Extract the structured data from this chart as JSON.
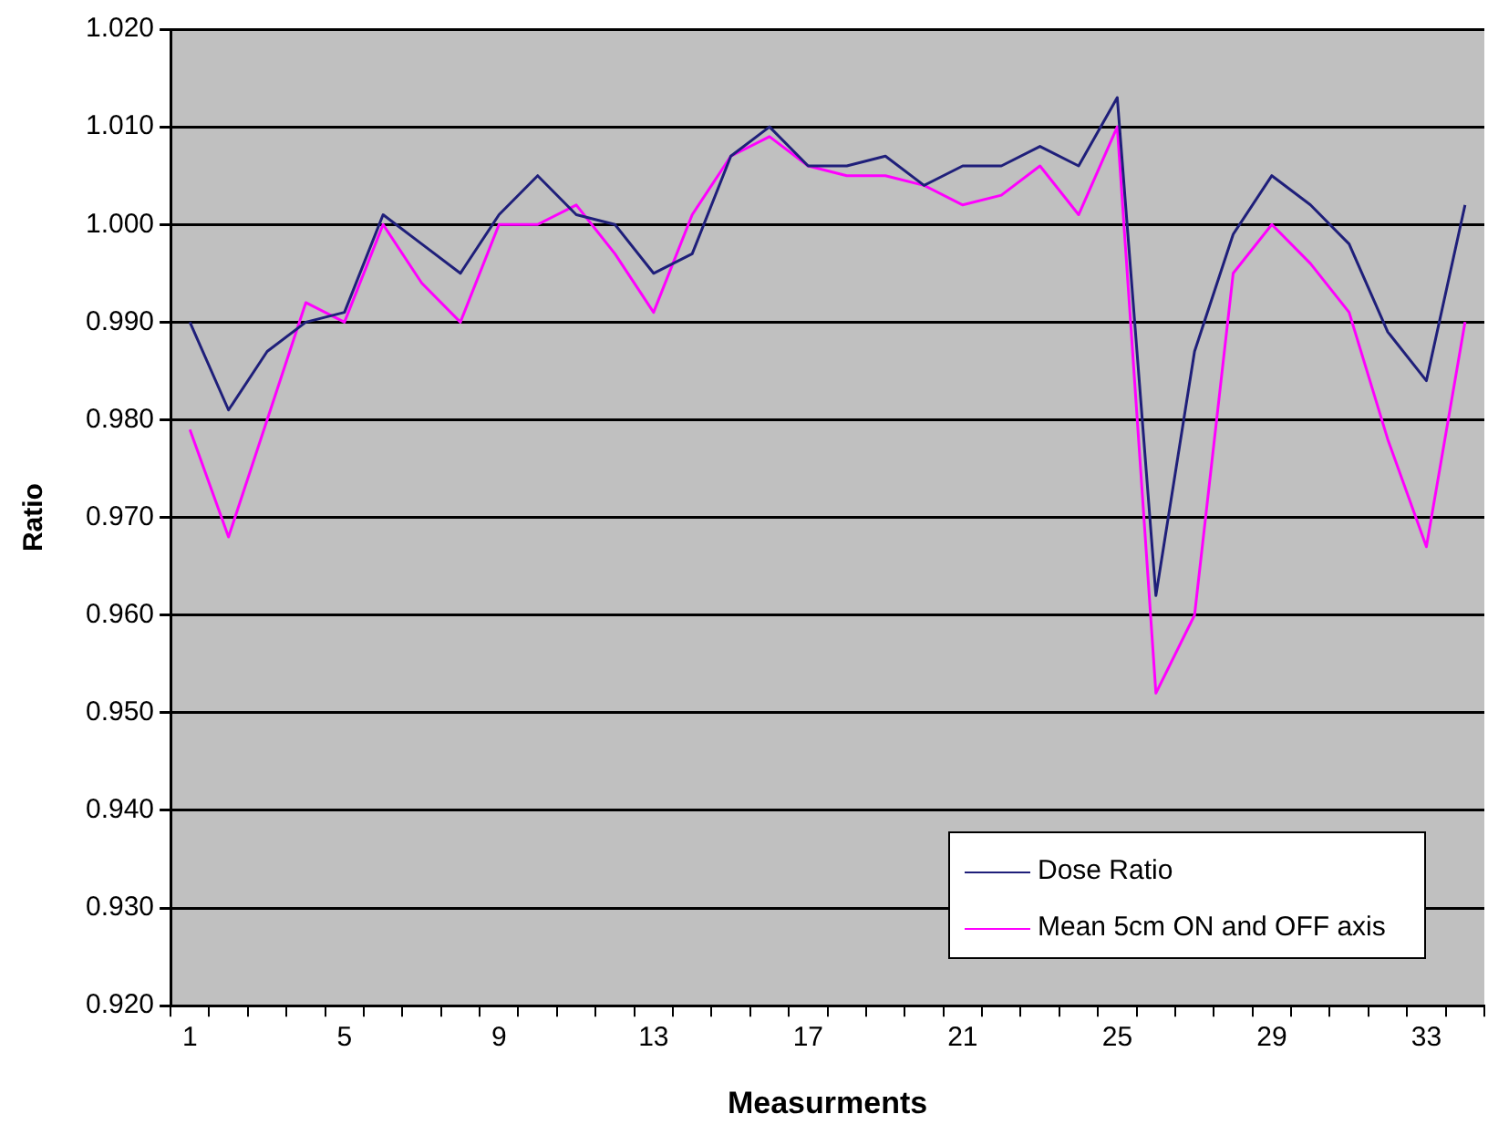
{
  "chart_data": {
    "type": "line",
    "xlabel": "Measurments",
    "ylabel": "Ratio",
    "categories": [
      "1",
      null,
      null,
      null,
      "5",
      null,
      null,
      null,
      "9",
      null,
      null,
      null,
      "13",
      null,
      null,
      null,
      "17",
      null,
      null,
      null,
      "21",
      null,
      null,
      null,
      "25",
      null,
      null,
      null,
      "29",
      null,
      null,
      null,
      "33",
      null
    ],
    "series": [
      {
        "name": "Dose Ratio",
        "color": "#1f1f7a",
        "values": [
          0.99,
          0.981,
          0.987,
          0.99,
          0.991,
          1.001,
          0.998,
          0.995,
          1.001,
          1.005,
          1.001,
          1.0,
          0.995,
          0.997,
          1.007,
          1.01,
          1.006,
          1.006,
          1.007,
          1.004,
          1.006,
          1.006,
          1.008,
          1.006,
          1.013,
          0.962,
          0.987,
          0.999,
          1.005,
          1.002,
          0.998,
          0.989,
          0.984,
          1.002
        ]
      },
      {
        "name": "Mean 5cm ON and OFF axis",
        "color": "#ff00ff",
        "values": [
          0.979,
          0.968,
          0.98,
          0.992,
          0.99,
          1.0,
          0.994,
          0.99,
          1.0,
          1.0,
          1.002,
          0.997,
          0.991,
          1.001,
          1.007,
          1.009,
          1.006,
          1.005,
          1.005,
          1.004,
          1.002,
          1.003,
          1.006,
          1.001,
          1.01,
          0.952,
          0.96,
          0.995,
          1.0,
          0.996,
          0.991,
          0.978,
          0.967,
          0.99
        ]
      }
    ],
    "ylim": [
      0.92,
      1.02
    ],
    "yticks": [
      {
        "value": 0.92,
        "label": "0.920"
      },
      {
        "value": 0.93,
        "label": "0.930"
      },
      {
        "value": 0.94,
        "label": "0.940"
      },
      {
        "value": 0.95,
        "label": "0.950"
      },
      {
        "value": 0.96,
        "label": "0.960"
      },
      {
        "value": 0.97,
        "label": "0.970"
      },
      {
        "value": 0.98,
        "label": "0.980"
      },
      {
        "value": 0.99,
        "label": "0.990"
      },
      {
        "value": 1.0,
        "label": "1.000"
      },
      {
        "value": 1.01,
        "label": "1.010"
      },
      {
        "value": 1.02,
        "label": "1.020"
      }
    ],
    "grid": "y",
    "legend": "bottom right",
    "marker": "none",
    "line_style": "solid"
  }
}
